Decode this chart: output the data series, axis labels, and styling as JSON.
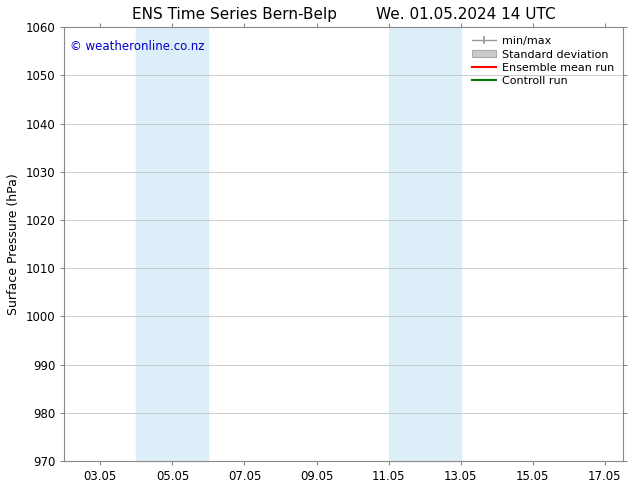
{
  "title_left": "ENS Time Series Bern-Belp",
  "title_right": "We. 01.05.2024 14 UTC",
  "ylabel": "Surface Pressure (hPa)",
  "ylim": [
    970,
    1060
  ],
  "yticks": [
    970,
    980,
    990,
    1000,
    1010,
    1020,
    1030,
    1040,
    1050,
    1060
  ],
  "xlim": [
    2.0,
    17.5
  ],
  "xtick_labels": [
    "03.05",
    "05.05",
    "07.05",
    "09.05",
    "11.05",
    "13.05",
    "15.05",
    "17.05"
  ],
  "xtick_positions": [
    3,
    5,
    7,
    9,
    11,
    13,
    15,
    17
  ],
  "shaded_bands": [
    {
      "x_start": 4.0,
      "x_end": 6.0,
      "color": "#dceef8"
    },
    {
      "x_start": 11.0,
      "x_end": 13.0,
      "color": "#dceef8"
    }
  ],
  "copyright_text": "© weatheronline.co.nz",
  "copyright_color": "#0000cc",
  "legend_items": [
    {
      "label": "min/max",
      "type": "errorbar",
      "color": "#999999"
    },
    {
      "label": "Standard deviation",
      "type": "box",
      "color": "#cccccc"
    },
    {
      "label": "Ensemble mean run",
      "type": "line",
      "color": "#ff0000",
      "lw": 1.5
    },
    {
      "label": "Controll run",
      "type": "line",
      "color": "#007700",
      "lw": 1.5
    }
  ],
  "bg_color": "#ffffff",
  "grid_color": "#cccccc",
  "title_fontsize": 11,
  "axis_label_fontsize": 9,
  "tick_fontsize": 8.5,
  "legend_fontsize": 8
}
